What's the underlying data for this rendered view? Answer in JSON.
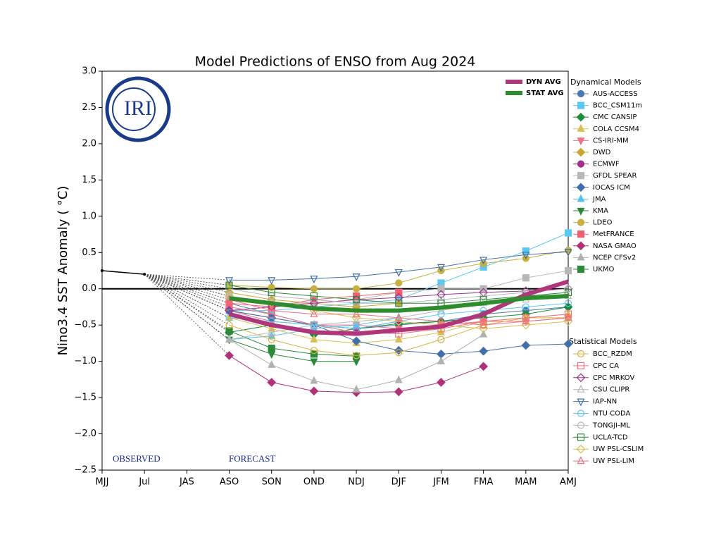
{
  "chart_data": {
    "type": "line",
    "title": "Model Predictions of ENSO from Aug 2024",
    "y_label": "Nino3.4 SST Anomaly ( °C)",
    "logo_text": "IRI",
    "annotations": [
      "OBSERVED",
      "FORECAST"
    ],
    "categories": [
      "MJJ",
      "Jul",
      "JAS",
      "ASO",
      "SON",
      "OND",
      "NDJ",
      "DJF",
      "JFM",
      "FMA",
      "MAM",
      "AMJ"
    ],
    "ylim": [
      -2.5,
      3.0
    ],
    "yticks": [
      {
        "value": -2.5,
        "label": "−2.5"
      },
      {
        "value": -2.0,
        "label": "−2.0"
      },
      {
        "value": -1.5,
        "label": "−1.5"
      },
      {
        "value": -1.0,
        "label": "−1.0"
      },
      {
        "value": -0.5,
        "label": "−0.5"
      },
      {
        "value": 0,
        "label": "0.0"
      },
      0.5,
      {
        "value": 1.0,
        "label": "1.0"
      },
      1.5,
      {
        "value": 2.0,
        "label": "2.0"
      },
      2.5,
      {
        "value": 3.0,
        "label": "3.0"
      }
    ],
    "hline": 0,
    "observed": {
      "color": "#000000",
      "values": [
        0.25,
        0.2,
        null,
        null,
        null,
        null,
        null,
        null,
        null,
        null,
        null,
        null
      ]
    },
    "averages": [
      {
        "name": "DYN AVG",
        "color": "#b0357a",
        "values": [
          null,
          null,
          null,
          -0.35,
          -0.5,
          -0.6,
          -0.62,
          -0.57,
          -0.52,
          -0.35,
          -0.08,
          0.1
        ]
      },
      {
        "name": "STAT AVG",
        "color": "#2e8b2e",
        "values": [
          null,
          null,
          null,
          -0.13,
          -0.2,
          -0.27,
          -0.3,
          -0.3,
          -0.26,
          -0.2,
          -0.13,
          -0.1
        ]
      }
    ],
    "dynamical": {
      "title": "Dynamical Models",
      "series": [
        {
          "name": "AUS-ACCESS",
          "color": "#4a78b0",
          "marker": "circle",
          "values": [
            null,
            null,
            null,
            -0.2,
            -0.35,
            -0.5,
            -0.55,
            -0.5,
            -0.45,
            -0.35,
            -0.3,
            -0.25
          ]
        },
        {
          "name": "BCC_CSM11m",
          "color": "#5bc8f0",
          "marker": "square",
          "values": [
            null,
            null,
            null,
            -0.3,
            -0.3,
            -0.25,
            -0.2,
            -0.15,
            0.08,
            0.3,
            0.52,
            0.77
          ]
        },
        {
          "name": "CMC CANSIP",
          "color": "#1e8c3a",
          "marker": "diamond",
          "values": [
            null,
            null,
            null,
            -0.6,
            -0.5,
            -0.63,
            -0.55,
            -0.48,
            -0.45,
            -0.4,
            -0.35,
            -0.25
          ]
        },
        {
          "name": "COLA CCSM4",
          "color": "#d8c050",
          "marker": "triangle-up",
          "values": [
            null,
            null,
            null,
            -0.4,
            -0.55,
            -0.7,
            -0.75,
            -0.7,
            -0.6,
            -0.45,
            -0.4,
            -0.35
          ]
        },
        {
          "name": "CS-IRI-MM",
          "color": "#f07080",
          "marker": "triangle-down",
          "values": [
            null,
            null,
            null,
            -0.3,
            -0.45,
            -0.5,
            -0.5,
            -0.55,
            -0.5,
            -0.45,
            -0.45,
            -0.4
          ]
        },
        {
          "name": "DWD",
          "color": "#c8a830",
          "marker": "diamond",
          "values": [
            null,
            null,
            null,
            -0.05,
            -0.15,
            -0.2,
            -0.25,
            -0.2,
            null,
            null,
            null,
            null
          ]
        },
        {
          "name": "ECMWF",
          "color": "#a0308a",
          "marker": "circle",
          "values": [
            null,
            null,
            null,
            -0.3,
            -0.4,
            -0.5,
            -0.55,
            -0.45,
            null,
            null,
            null,
            null
          ]
        },
        {
          "name": "GFDL SPEAR",
          "color": "#b8b8b8",
          "marker": "square",
          "values": [
            null,
            null,
            null,
            -0.1,
            -0.2,
            -0.2,
            -0.15,
            -0.05,
            0.0,
            0.0,
            0.15,
            0.25
          ]
        },
        {
          "name": "IOCAS ICM",
          "color": "#3f6fa8",
          "marker": "diamond",
          "values": [
            null,
            null,
            null,
            -0.3,
            -0.4,
            -0.5,
            -0.72,
            -0.85,
            -0.9,
            -0.86,
            -0.78,
            -0.76
          ]
        },
        {
          "name": "JMA",
          "color": "#5bc0f0",
          "marker": "triangle-up",
          "values": [
            null,
            null,
            null,
            -0.7,
            -0.65,
            -0.55,
            -0.5,
            -0.4,
            null,
            null,
            null,
            null
          ]
        },
        {
          "name": "KMA",
          "color": "#2a8a3a",
          "marker": "triangle-down",
          "values": [
            null,
            null,
            null,
            -0.7,
            -0.9,
            -1.0,
            -1.0,
            null,
            null,
            null,
            null,
            null
          ]
        },
        {
          "name": "LDEO",
          "color": "#c8b040",
          "marker": "circle",
          "values": [
            null,
            null,
            null,
            0.05,
            0.02,
            0.0,
            0.0,
            0.08,
            0.25,
            0.35,
            0.42,
            0.53
          ]
        },
        {
          "name": "MetFRANCE",
          "color": "#f06070",
          "marker": "square",
          "values": [
            null,
            null,
            null,
            -0.2,
            -0.25,
            -0.15,
            -0.1,
            -0.05,
            null,
            null,
            null,
            null
          ]
        },
        {
          "name": "NASA GMAO",
          "color": "#b0307a",
          "marker": "diamond",
          "values": [
            null,
            null,
            null,
            -0.92,
            -1.29,
            -1.41,
            -1.43,
            -1.42,
            -1.29,
            -1.07,
            null,
            null
          ]
        },
        {
          "name": "NCEP CFSv2",
          "color": "#b0b0b0",
          "marker": "triangle-up",
          "values": [
            null,
            null,
            null,
            -0.7,
            -1.05,
            -1.27,
            -1.39,
            -1.26,
            -1.0,
            -0.63,
            null,
            null
          ]
        },
        {
          "name": "UKMO",
          "color": "#2a8a3a",
          "marker": "square",
          "values": [
            null,
            null,
            null,
            -0.58,
            -0.82,
            -0.9,
            -0.93,
            null,
            null,
            null,
            null,
            null
          ]
        }
      ]
    },
    "statistical": {
      "title": "Statistical Models",
      "series": [
        {
          "name": "BCC_RZDM",
          "color": "#d8b040",
          "marker": "circle",
          "values": [
            null,
            null,
            null,
            -0.5,
            -0.7,
            -0.85,
            -0.92,
            -0.88,
            -0.7,
            -0.5,
            -0.4,
            -0.4
          ]
        },
        {
          "name": "CPC CA",
          "color": "#f07080",
          "marker": "square",
          "values": [
            null,
            null,
            null,
            -0.25,
            -0.35,
            -0.5,
            -0.6,
            -0.62,
            -0.55,
            -0.45,
            -0.4,
            -0.35
          ]
        },
        {
          "name": "CPC MRKOV",
          "color": "#a0308a",
          "marker": "diamond",
          "values": [
            null,
            null,
            null,
            -0.3,
            -0.25,
            -0.2,
            -0.15,
            -0.12,
            -0.08,
            -0.05,
            -0.03,
            0.0
          ]
        },
        {
          "name": "CSU CLIPR",
          "color": "#b8b8b8",
          "marker": "triangle-up",
          "values": [
            null,
            null,
            null,
            -0.7,
            -0.6,
            -0.5,
            -0.45,
            -0.4,
            -0.3,
            -0.2,
            -0.15,
            -0.1
          ]
        },
        {
          "name": "IAP-NN",
          "color": "#3f6fa8",
          "marker": "triangle-down",
          "values": [
            null,
            null,
            null,
            0.12,
            0.12,
            0.14,
            0.17,
            0.23,
            0.3,
            0.4,
            0.47,
            0.51
          ]
        },
        {
          "name": "NTU CODA",
          "color": "#5bc8f0",
          "marker": "circle",
          "values": [
            null,
            null,
            null,
            -0.4,
            -0.45,
            -0.5,
            -0.55,
            -0.45,
            -0.35,
            -0.3,
            -0.25,
            -0.2
          ]
        },
        {
          "name": "TONGJI-ML",
          "color": "#b8b8b8",
          "marker": "circle",
          "values": [
            null,
            null,
            null,
            0.0,
            -0.1,
            -0.15,
            -0.2,
            -0.2,
            -0.15,
            -0.1,
            -0.05,
            0.0
          ]
        },
        {
          "name": "UCLA-TCD",
          "color": "#2a8a3a",
          "marker": "square",
          "values": [
            null,
            null,
            null,
            0.05,
            -0.05,
            -0.1,
            -0.15,
            -0.2,
            -0.2,
            -0.15,
            -0.1,
            -0.05
          ]
        },
        {
          "name": "UW PSL-CSLIM",
          "color": "#d8c050",
          "marker": "diamond",
          "values": [
            null,
            null,
            null,
            -0.1,
            -0.2,
            -0.3,
            -0.4,
            -0.45,
            -0.5,
            -0.55,
            -0.5,
            -0.45
          ]
        },
        {
          "name": "UW PSL-LIM",
          "color": "#f07080",
          "marker": "triangle-up",
          "values": [
            null,
            null,
            null,
            -0.15,
            -0.3,
            -0.35,
            -0.35,
            -0.4,
            -0.45,
            -0.5,
            -0.45,
            -0.4
          ]
        }
      ]
    }
  }
}
